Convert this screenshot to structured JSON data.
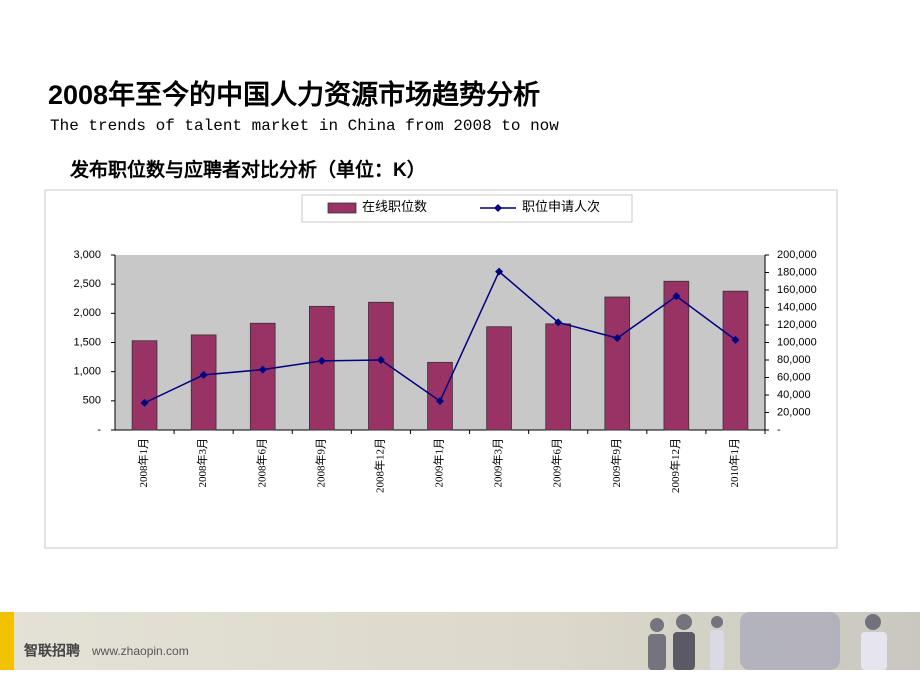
{
  "slide": {
    "title": "2008年至今的中国人力资源市场趋势分析",
    "subtitle": "The trends of talent market in China from 2008 to now",
    "footer": {
      "brand": "智联招聘",
      "url": "www.zhaopin.com"
    }
  },
  "chart_data": {
    "type": "bar",
    "title": "发布职位数与应聘者对比分析（单位：K）",
    "categories": [
      "2008年1月",
      "2008年3月",
      "2008年6月",
      "2008年9月",
      "2008年12月",
      "2009年1月",
      "2009年3月",
      "2009年6月",
      "2009年9月",
      "2009年12月",
      "2010年1月"
    ],
    "series": [
      {
        "name": "在线职位数",
        "type": "bar",
        "color": "#993366",
        "values": [
          1530,
          1630,
          1830,
          2120,
          2190,
          1160,
          1770,
          1820,
          2280,
          2550,
          2380
        ]
      },
      {
        "name": "职位申请人次",
        "type": "line",
        "axis": "y2",
        "color": "#000080",
        "values": [
          31000,
          63000,
          69000,
          79000,
          80000,
          33000,
          181000,
          123000,
          105000,
          153000,
          103000
        ]
      }
    ],
    "ylim": [
      0,
      3000
    ],
    "yticks": [
      {
        "value": 0,
        "label": "-"
      },
      500,
      {
        "value": 1000,
        "label": "1,000"
      },
      {
        "value": 1500,
        "label": "1,500"
      },
      {
        "value": 2000,
        "label": "2,000"
      },
      {
        "value": 2500,
        "label": "2,500"
      },
      {
        "value": 3000,
        "label": "3,000"
      }
    ],
    "y2lim": [
      0,
      200000
    ],
    "y2ticks": [
      {
        "value": 0,
        "label": "-"
      },
      {
        "value": 20000,
        "label": "20,000"
      },
      {
        "value": 40000,
        "label": "40,000"
      },
      {
        "value": 60000,
        "label": "60,000"
      },
      {
        "value": 80000,
        "label": "80,000"
      },
      {
        "value": 100000,
        "label": "100,000"
      },
      {
        "value": 120000,
        "label": "120,000"
      },
      {
        "value": 140000,
        "label": "140,000"
      },
      {
        "value": 160000,
        "label": "160,000"
      },
      {
        "value": 180000,
        "label": "180,000"
      },
      {
        "value": 200000,
        "label": "200,000"
      }
    ],
    "grid": false,
    "legend": "top"
  }
}
